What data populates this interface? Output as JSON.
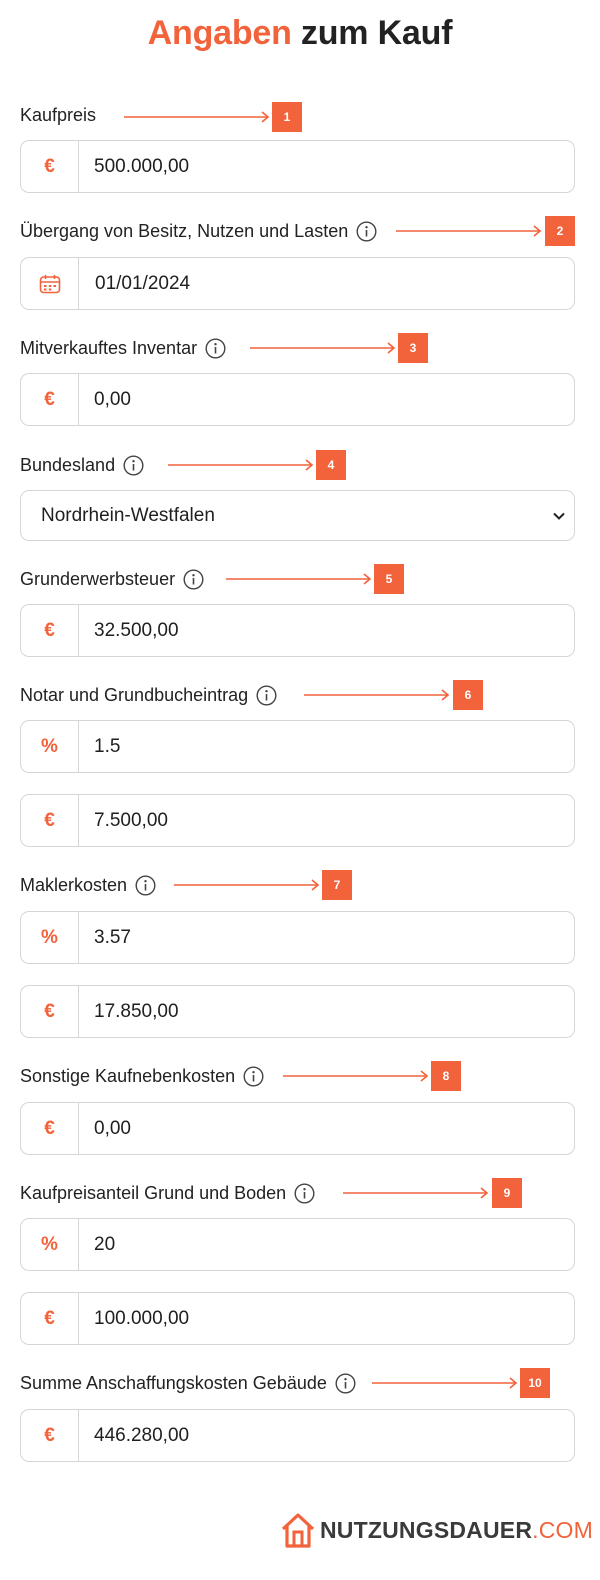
{
  "title": {
    "accent": "Angaben",
    "rest": " zum Kauf"
  },
  "fields": [
    {
      "label": "Kaufpreis",
      "marker": "1",
      "info": false,
      "inputs": [
        {
          "prefix": "€",
          "value": "500.000,00"
        }
      ]
    },
    {
      "label": "Übergang von Besitz, Nutzen und Lasten",
      "marker": "2",
      "info": true,
      "date": "01/01/2024"
    },
    {
      "label": "Mitverkauftes Inventar",
      "marker": "3",
      "info": true,
      "inputs": [
        {
          "prefix": "€",
          "value": "0,00"
        }
      ]
    },
    {
      "label": "Bundesland",
      "marker": "4",
      "info": true,
      "select": "Nordrhein-Westfalen"
    },
    {
      "label": "Grunderwerbsteuer",
      "marker": "5",
      "info": true,
      "inputs": [
        {
          "prefix": "€",
          "value": "32.500,00"
        }
      ]
    },
    {
      "label": "Notar und Grundbucheintrag",
      "marker": "6",
      "info": true,
      "inputs": [
        {
          "prefix": "%",
          "value": "1.5"
        },
        {
          "prefix": "€",
          "value": "7.500,00"
        }
      ]
    },
    {
      "label": "Maklerkosten",
      "marker": "7",
      "info": true,
      "inputs": [
        {
          "prefix": "%",
          "value": "3.57"
        },
        {
          "prefix": "€",
          "value": "17.850,00"
        }
      ]
    },
    {
      "label": "Sonstige Kaufnebenkosten",
      "marker": "8",
      "info": true,
      "inputs": [
        {
          "prefix": "€",
          "value": "0,00"
        }
      ]
    },
    {
      "label": "Kaufpreisanteil Grund und Boden",
      "marker": "9",
      "info": true,
      "inputs": [
        {
          "prefix": "%",
          "value": "20"
        },
        {
          "prefix": "€",
          "value": "100.000,00"
        }
      ]
    },
    {
      "label": "Summe Anschaffungskosten Gebäude",
      "marker": "10",
      "info": true,
      "inputs": [
        {
          "prefix": "€",
          "value": "446.280,00"
        }
      ]
    }
  ],
  "footer": {
    "brand": "NUTZUNGSDAUER",
    "tld": ".COM"
  },
  "colors": {
    "accent": "#f2623b",
    "border": "#d6d6d6",
    "text": "#1f1f1f"
  },
  "icons": {
    "info": "info-circle-icon",
    "calendar": "calendar-icon",
    "select": "chevron-down-icon",
    "logo": "house-logo-icon"
  }
}
